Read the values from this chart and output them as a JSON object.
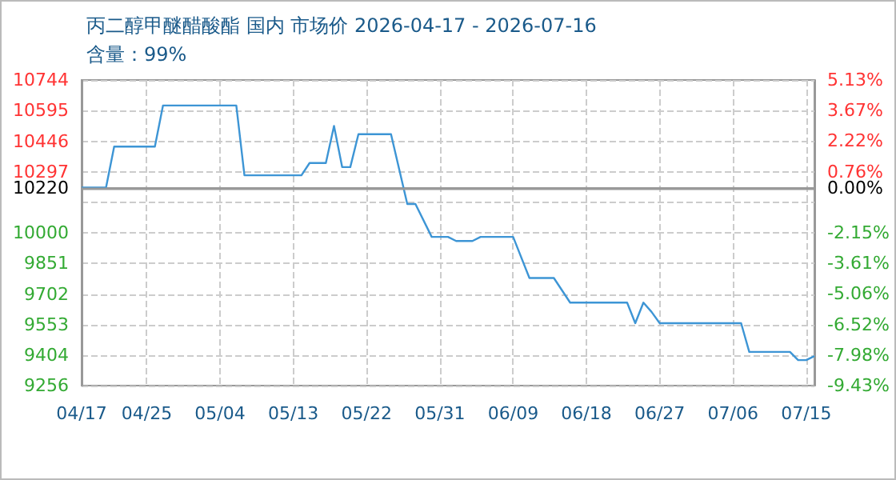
{
  "chart_data": {
    "type": "line",
    "title": "丙二醇甲醚醋酸酯 国内 市场价 2026-04-17 - 2026-07-16",
    "subtitle": "含量：99%",
    "x": [
      "2026-04-17",
      "2026-04-20",
      "2026-04-21",
      "2026-04-26",
      "2026-04-27",
      "2026-05-06",
      "2026-05-07",
      "2026-05-14",
      "2026-05-15",
      "2026-05-17",
      "2026-05-18",
      "2026-05-19",
      "2026-05-20",
      "2026-05-21",
      "2026-05-25",
      "2026-05-27",
      "2026-05-28",
      "2026-05-30",
      "2026-06-01",
      "2026-06-02",
      "2026-06-04",
      "2026-06-05",
      "2026-06-09",
      "2026-06-11",
      "2026-06-14",
      "2026-06-16",
      "2026-06-23",
      "2026-06-24",
      "2026-06-25",
      "2026-06-26",
      "2026-06-27",
      "2026-07-07",
      "2026-07-08",
      "2026-07-13",
      "2026-07-14",
      "2026-07-15",
      "2026-07-16"
    ],
    "series": [
      {
        "color": "#3d95d5",
        "values": [
          10220,
          10220,
          10420,
          10420,
          10620,
          10620,
          10280,
          10280,
          10340,
          10340,
          10520,
          10320,
          10320,
          10480,
          10480,
          10140,
          10140,
          9980,
          9980,
          9960,
          9960,
          9980,
          9980,
          9780,
          9780,
          9660,
          9660,
          9560,
          9660,
          9615,
          9560,
          9560,
          9420,
          9420,
          9380,
          9380,
          9400
        ]
      }
    ],
    "xlim": [
      "2026-04-17",
      "2026-07-16"
    ],
    "xticks": [
      {
        "value": "2026-04-17",
        "label": "04/17"
      },
      {
        "value": "2026-04-25",
        "label": "04/25"
      },
      {
        "value": "2026-05-04",
        "label": "05/04"
      },
      {
        "value": "2026-05-13",
        "label": "05/13"
      },
      {
        "value": "2026-05-22",
        "label": "05/22"
      },
      {
        "value": "2026-05-31",
        "label": "05/31"
      },
      {
        "value": "2026-06-09",
        "label": "06/09"
      },
      {
        "value": "2026-06-18",
        "label": "06/18"
      },
      {
        "value": "2026-06-27",
        "label": "06/27"
      },
      {
        "value": "2026-07-06",
        "label": "07/06"
      },
      {
        "value": "2026-07-15",
        "label": "07/15"
      }
    ],
    "ylim": [
      9256,
      10744
    ],
    "yticks": [
      9256,
      9404,
      9553,
      9702,
      9851,
      10000,
      {
        "value": 10149,
        "label": null
      },
      10220,
      10297,
      10446,
      10595,
      10744
    ],
    "y2lim": [
      -9.43,
      5.13
    ],
    "y2ticks": [
      {
        "value": -9.43,
        "label": "-9.43%"
      },
      {
        "value": -7.98,
        "label": "-7.98%"
      },
      {
        "value": -6.52,
        "label": "-6.52%"
      },
      {
        "value": -5.06,
        "label": "-5.06%"
      },
      {
        "value": -3.61,
        "label": "-3.61%"
      },
      {
        "value": -2.15,
        "label": "-2.15%"
      },
      {
        "value": 0,
        "label": "0.00%"
      },
      {
        "value": 0.76,
        "label": "0.76%"
      },
      {
        "value": 2.22,
        "label": "2.22%"
      },
      {
        "value": 3.67,
        "label": "3.67%"
      },
      {
        "value": 5.13,
        "label": "5.13%"
      }
    ],
    "ref_lines": [
      {
        "axis": "y",
        "value": 10220,
        "color": "#999999"
      }
    ],
    "grid": true,
    "marker": "none"
  }
}
